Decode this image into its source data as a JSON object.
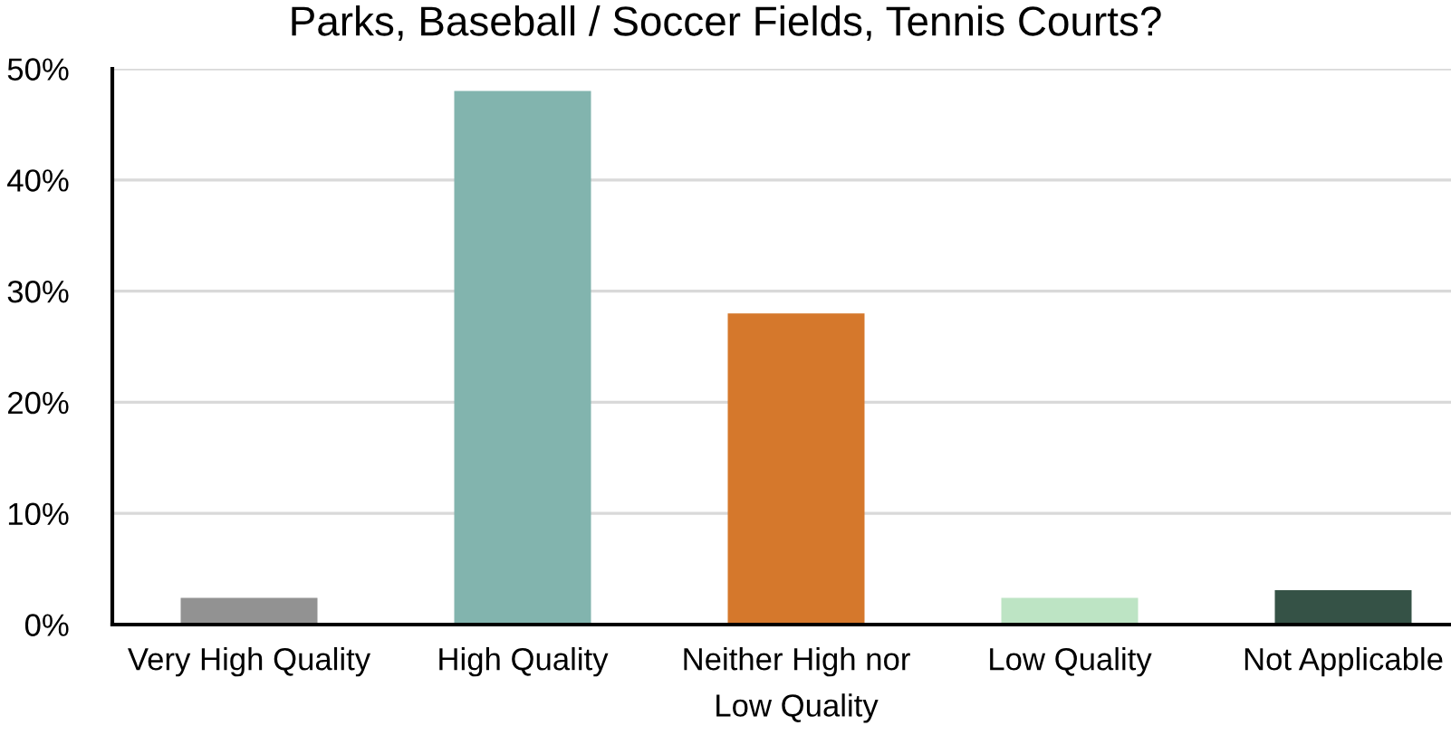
{
  "chart_data": {
    "type": "bar",
    "title": "Parks, Baseball / Soccer Fields, Tennis Courts?",
    "categories": [
      "Very High Quality",
      "High Quality",
      "Neither High nor Low Quality",
      "Low Quality",
      "Not Applicable"
    ],
    "values": [
      2.4,
      48,
      28,
      2.4,
      3.1
    ],
    "colors": [
      "#929292",
      "#82b4ae",
      "#d5782c",
      "#bde4c4",
      "#355246"
    ],
    "ylim": [
      0,
      50
    ],
    "yticks": [
      {
        "value": 0,
        "label": "0%"
      },
      {
        "value": 10,
        "label": "10%"
      },
      {
        "value": 20,
        "label": "20%"
      },
      {
        "value": 30,
        "label": "30%"
      },
      {
        "value": 40,
        "label": "40%"
      },
      {
        "value": 50,
        "label": "50%"
      }
    ],
    "grid": "y"
  }
}
